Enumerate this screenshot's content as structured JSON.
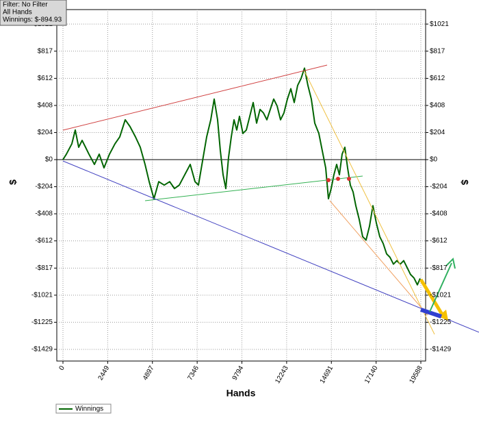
{
  "chart_data": {
    "type": "line",
    "filter_box": [
      "Filter: No Filter",
      "All Hands",
      "Winnings: $-894.93"
    ],
    "xlabel": "Hands",
    "ylabel": "$",
    "y2label": "$",
    "grid": true,
    "xlim": [
      -337,
      19850
    ],
    "ylim": [
      -1517,
      1130
    ],
    "xticks": [
      0,
      2449,
      4897,
      7346,
      9794,
      12243,
      14691,
      17140,
      19588
    ],
    "yticks": [
      {
        "value": 1021,
        "label": "$1021"
      },
      {
        "value": 817,
        "label": "$817"
      },
      {
        "value": 612,
        "label": "$612"
      },
      {
        "value": 408,
        "label": "$408"
      },
      {
        "value": 204,
        "label": "$204"
      },
      {
        "value": 0,
        "label": "$0"
      },
      {
        "value": -204,
        "label": "-$204"
      },
      {
        "value": -408,
        "label": "-$408"
      },
      {
        "value": -612,
        "label": "-$612"
      },
      {
        "value": -817,
        "label": "-$817"
      },
      {
        "value": -1021,
        "label": "-$1021"
      },
      {
        "value": -1225,
        "label": "-$1225"
      },
      {
        "value": -1429,
        "label": "-$1429"
      }
    ],
    "x": [
      0,
      187,
      487,
      674,
      861,
      1049,
      1236,
      1423,
      1723,
      1985,
      2247,
      2547,
      2846,
      3109,
      3408,
      3670,
      3970,
      4232,
      4494,
      4719,
      4981,
      5243,
      5543,
      5842,
      6105,
      6367,
      6666,
      6966,
      7228,
      7415,
      7640,
      7865,
      8090,
      8277,
      8464,
      8614,
      8764,
      8913,
      9063,
      9213,
      9363,
      9512,
      9662,
      9850,
      10037,
      10224,
      10412,
      10599,
      10786,
      10973,
      11161,
      11348,
      11535,
      11722,
      11909,
      12096,
      12284,
      12471,
      12658,
      12845,
      13033,
      13220,
      13407,
      13594,
      13782,
      14006,
      14231,
      14381,
      14531,
      14680,
      14830,
      14980,
      15130,
      15280,
      15429,
      15579,
      15729,
      15879,
      16029,
      16216,
      16403,
      16590,
      16778,
      16965,
      17152,
      17339,
      17527,
      17714,
      17901,
      18088,
      18276,
      18463,
      18650,
      18837,
      19024,
      19212,
      19399,
      19549
    ],
    "series": [
      {
        "name": "Winnings",
        "color": "#006400",
        "values": [
          0,
          41,
          119,
          223,
          93,
          145,
          93,
          41,
          -36,
          41,
          -62,
          41,
          119,
          171,
          300,
          249,
          171,
          93,
          -36,
          -166,
          -295,
          -166,
          -192,
          -166,
          -218,
          -192,
          -114,
          -36,
          -166,
          -192,
          -10,
          171,
          300,
          456,
          300,
          67,
          -114,
          -218,
          16,
          171,
          300,
          223,
          326,
          197,
          223,
          326,
          430,
          275,
          378,
          352,
          300,
          378,
          456,
          404,
          300,
          352,
          456,
          534,
          430,
          559,
          611,
          689,
          559,
          456,
          275,
          197,
          41,
          -62,
          -295,
          -218,
          -114,
          -36,
          -114,
          41,
          93,
          -62,
          -192,
          -243,
          -347,
          -451,
          -580,
          -606,
          -502,
          -347,
          -477,
          -580,
          -632,
          -710,
          -736,
          -787,
          -761,
          -787,
          -761,
          -813,
          -865,
          -891,
          -943,
          -895
        ]
      }
    ]
  }
}
